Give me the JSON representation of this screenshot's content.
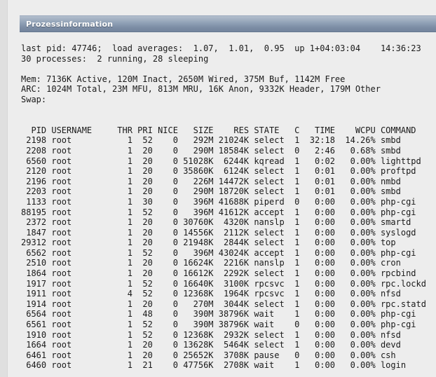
{
  "panel": {
    "title": "Prozessinformation"
  },
  "colors": {
    "page_bg": "#ededed",
    "gutter_bg": "#dfdfdf",
    "panel_header_top": "#b4bfce",
    "panel_header_bottom": "#73849d"
  },
  "top_output": {
    "summary_lines": [
      "last pid: 47746;  load averages:  1.07,  1.01,  0.95  up 1+04:03:04    14:36:23",
      "30 processes:  2 running, 28 sleeping",
      "",
      "Mem: 7136K Active, 120M Inact, 2650M Wired, 375M Buf, 1142M Free",
      "ARC: 1024M Total, 23M MFU, 813M MRU, 16K Anon, 9332K Header, 179M Other",
      "Swap:"
    ],
    "table": {
      "columns": [
        "PID",
        "USERNAME",
        "THR",
        "PRI",
        "NICE",
        "SIZE",
        "RES",
        "STATE",
        "C",
        "TIME",
        "WCPU",
        "COMMAND"
      ],
      "rows": [
        [
          "2198",
          "root",
          "1",
          "52",
          "0",
          "292M",
          "21024K",
          "select",
          "1",
          "32:18",
          "14.26%",
          "smbd"
        ],
        [
          "2208",
          "root",
          "1",
          "20",
          "0",
          "290M",
          "18584K",
          "select",
          "0",
          "2:46",
          "0.68%",
          "smbd"
        ],
        [
          "6560",
          "root",
          "1",
          "20",
          "0",
          "51028K",
          "6244K",
          "kqread",
          "1",
          "0:02",
          "0.00%",
          "lighttpd"
        ],
        [
          "2120",
          "root",
          "1",
          "20",
          "0",
          "35860K",
          "6124K",
          "select",
          "1",
          "0:01",
          "0.00%",
          "proftpd"
        ],
        [
          "2196",
          "root",
          "1",
          "20",
          "0",
          "226M",
          "14472K",
          "select",
          "1",
          "0:01",
          "0.00%",
          "nmbd"
        ],
        [
          "2203",
          "root",
          "1",
          "20",
          "0",
          "290M",
          "18720K",
          "select",
          "1",
          "0:01",
          "0.00%",
          "smbd"
        ],
        [
          "1133",
          "root",
          "1",
          "30",
          "0",
          "396M",
          "41688K",
          "piperd",
          "0",
          "0:00",
          "0.00%",
          "php-cgi"
        ],
        [
          "88195",
          "root",
          "1",
          "52",
          "0",
          "396M",
          "41612K",
          "accept",
          "1",
          "0:00",
          "0.00%",
          "php-cgi"
        ],
        [
          "2372",
          "root",
          "1",
          "20",
          "0",
          "30760K",
          "4320K",
          "nanslp",
          "1",
          "0:00",
          "0.00%",
          "smartd"
        ],
        [
          "1847",
          "root",
          "1",
          "20",
          "0",
          "14556K",
          "2112K",
          "select",
          "1",
          "0:00",
          "0.00%",
          "syslogd"
        ],
        [
          "29312",
          "root",
          "1",
          "20",
          "0",
          "21948K",
          "2844K",
          "select",
          "1",
          "0:00",
          "0.00%",
          "top"
        ],
        [
          "6562",
          "root",
          "1",
          "52",
          "0",
          "396M",
          "43024K",
          "accept",
          "1",
          "0:00",
          "0.00%",
          "php-cgi"
        ],
        [
          "2510",
          "root",
          "1",
          "20",
          "0",
          "16624K",
          "2216K",
          "nanslp",
          "1",
          "0:00",
          "0.00%",
          "cron"
        ],
        [
          "1864",
          "root",
          "1",
          "20",
          "0",
          "16612K",
          "2292K",
          "select",
          "1",
          "0:00",
          "0.00%",
          "rpcbind"
        ],
        [
          "1917",
          "root",
          "1",
          "52",
          "0",
          "16640K",
          "3100K",
          "rpcsvc",
          "1",
          "0:00",
          "0.00%",
          "rpc.lockd"
        ],
        [
          "1911",
          "root",
          "4",
          "52",
          "0",
          "12368K",
          "1964K",
          "rpcsvc",
          "1",
          "0:00",
          "0.00%",
          "nfsd"
        ],
        [
          "1914",
          "root",
          "1",
          "20",
          "0",
          "270M",
          "3044K",
          "select",
          "1",
          "0:00",
          "0.00%",
          "rpc.statd"
        ],
        [
          "6564",
          "root",
          "1",
          "48",
          "0",
          "390M",
          "38796K",
          "wait",
          "1",
          "0:00",
          "0.00%",
          "php-cgi"
        ],
        [
          "6561",
          "root",
          "1",
          "52",
          "0",
          "390M",
          "38796K",
          "wait",
          "0",
          "0:00",
          "0.00%",
          "php-cgi"
        ],
        [
          "1910",
          "root",
          "1",
          "52",
          "0",
          "12368K",
          "2932K",
          "select",
          "1",
          "0:00",
          "0.00%",
          "nfsd"
        ],
        [
          "1664",
          "root",
          "1",
          "20",
          "0",
          "13628K",
          "5464K",
          "select",
          "1",
          "0:00",
          "0.00%",
          "devd"
        ],
        [
          "6461",
          "root",
          "1",
          "20",
          "0",
          "25652K",
          "3708K",
          "pause",
          "0",
          "0:00",
          "0.00%",
          "csh"
        ],
        [
          "6460",
          "root",
          "1",
          "21",
          "0",
          "47756K",
          "2708K",
          "wait",
          "1",
          "0:00",
          "0.00%",
          "login"
        ]
      ]
    }
  }
}
